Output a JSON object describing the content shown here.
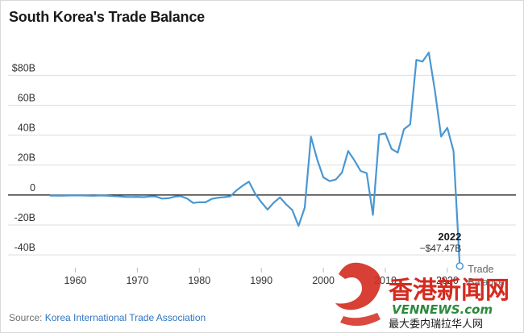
{
  "title": "South Korea's Trade Balance",
  "source_prefix": "Source: ",
  "source_link": "Korea International Trade Association",
  "chart_data": {
    "type": "line",
    "title": "South Korea's Trade Balance",
    "xlabel": "",
    "ylabel": "",
    "xlim": [
      1955,
      2023
    ],
    "ylim": [
      -47.5,
      98
    ],
    "x_ticks": [
      1960,
      1970,
      1980,
      1990,
      2000,
      2010,
      2020
    ],
    "x_tick_labels": [
      "1960",
      "1970",
      "1980",
      "1990",
      "2000",
      "2010",
      "2020"
    ],
    "y_ticks": [
      -40,
      -20,
      0,
      20,
      40,
      60,
      80
    ],
    "y_tick_labels": [
      "-40B",
      "-20B",
      "0",
      "20B",
      "40B",
      "60B",
      "$80B"
    ],
    "grid": "horizontal",
    "legend": "none",
    "line_color": "#4a97d2",
    "series": [
      {
        "x": [
          1956,
          1957,
          1958,
          1959,
          1960,
          1961,
          1962,
          1963,
          1964,
          1965,
          1966,
          1967,
          1968,
          1969,
          1970,
          1971,
          1972,
          1973,
          1974,
          1975,
          1976,
          1977,
          1978,
          1979,
          1980,
          1981,
          1982,
          1983,
          1984,
          1985,
          1986,
          1987,
          1988,
          1989,
          1990,
          1991,
          1992,
          1993,
          1994,
          1995,
          1996,
          1997,
          1998,
          1999,
          2000,
          2001,
          2002,
          2003,
          2004,
          2005,
          2006,
          2007,
          2008,
          2009,
          2010,
          2011,
          2012,
          2013,
          2014,
          2015,
          2016,
          2017,
          2018,
          2019,
          2020,
          2021,
          2022
        ],
        "y": [
          -0.4,
          -0.4,
          -0.4,
          -0.3,
          -0.3,
          -0.3,
          -0.4,
          -0.5,
          -0.3,
          -0.4,
          -0.7,
          -0.9,
          -1.2,
          -1.3,
          -1.2,
          -1.4,
          -1.0,
          -1.0,
          -2.4,
          -2.2,
          -1.1,
          -0.8,
          -2.3,
          -5.3,
          -4.8,
          -4.9,
          -2.6,
          -1.8,
          -1.4,
          -0.9,
          3.1,
          6.3,
          8.9,
          0.9,
          -4.8,
          -9.7,
          -5.1,
          -1.6,
          -6.3,
          -10.1,
          -20.6,
          -8.5,
          39.0,
          23.9,
          11.8,
          9.3,
          10.3,
          15.0,
          29.4,
          23.2,
          16.1,
          14.6,
          -13.3,
          40.4,
          41.2,
          30.8,
          28.3,
          44.0,
          47.2,
          90.3,
          89.2,
          95.2,
          69.7,
          39.1,
          44.9,
          29.3,
          -47.47
        ]
      }
    ],
    "annotations": [
      {
        "year": "2022",
        "value": "−$47.47B",
        "label_line1": "Trade",
        "label_line2": "Balance"
      }
    ]
  },
  "watermark": {
    "brand_cn": "香港新闻网",
    "brand_en": "VENNEWS.com",
    "tagline": "最大委内瑞拉华人网",
    "red": "#d42a1f",
    "green": "#2a8a3a"
  }
}
